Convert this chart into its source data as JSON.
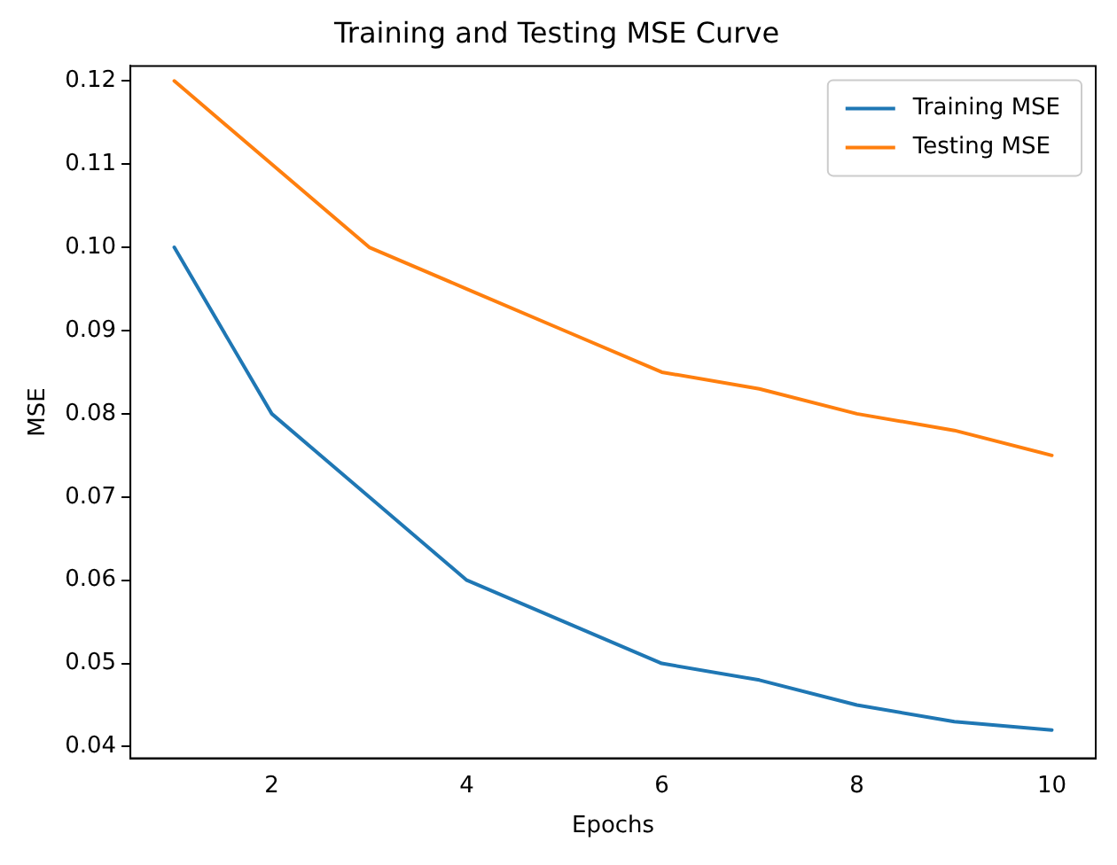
{
  "chart_data": {
    "type": "line",
    "title": "Training and Testing MSE Curve",
    "xlabel": "Epochs",
    "ylabel": "MSE",
    "x": [
      1,
      2,
      3,
      4,
      5,
      6,
      7,
      8,
      9,
      10
    ],
    "series": [
      {
        "name": "Training MSE",
        "color": "#1f77b4",
        "values": [
          0.1,
          0.08,
          0.07,
          0.06,
          0.055,
          0.05,
          0.048,
          0.045,
          0.043,
          0.042
        ]
      },
      {
        "name": "Testing MSE",
        "color": "#ff7f0e",
        "values": [
          0.12,
          0.11,
          0.1,
          0.095,
          0.09,
          0.085,
          0.083,
          0.08,
          0.078,
          0.075
        ]
      }
    ],
    "xlim": [
      0.55,
      10.45
    ],
    "xticks": [
      2,
      4,
      6,
      8,
      10
    ],
    "ylim": [
      0.0386,
      0.1218
    ],
    "yticks": [
      0.04,
      0.05,
      0.06,
      0.07,
      0.08,
      0.09,
      {
        "value": 0.1,
        "label": "0.10"
      },
      0.11,
      0.12
    ],
    "grid": false,
    "legend": "top right",
    "marker": "none",
    "line_style": "solid"
  }
}
